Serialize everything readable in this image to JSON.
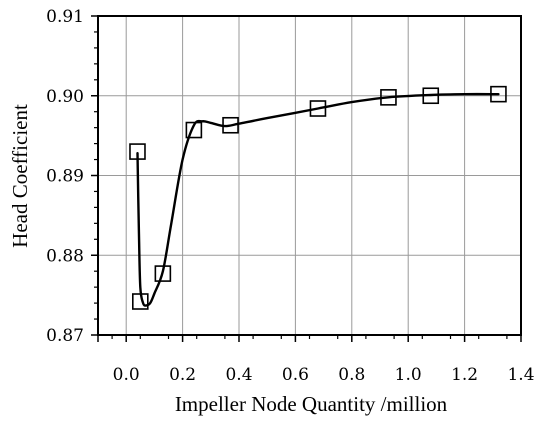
{
  "chart_data": {
    "type": "line",
    "xlabel": "Impeller Node Quantity /million",
    "ylabel": "Head Coefficient",
    "xlim": [
      -0.1,
      1.4
    ],
    "ylim": [
      0.87,
      0.91
    ],
    "x_ticks": [
      0.0,
      0.2,
      0.4,
      0.6,
      0.8,
      1.0,
      1.2,
      1.4
    ],
    "x_tick_labels": [
      "0.0",
      "0.2",
      "0.4",
      "0.6",
      "0.8",
      "1.0",
      "1.2",
      "1.4"
    ],
    "y_ticks": [
      0.87,
      0.88,
      0.89,
      0.9,
      0.91
    ],
    "y_tick_labels": [
      "0.87",
      "0.88",
      "0.89",
      "0.90",
      "0.91"
    ],
    "grid": true,
    "marker": "open-square",
    "series": [
      {
        "x": [
          0.04,
          0.05,
          0.13,
          0.24,
          0.37,
          0.68,
          0.93,
          1.08,
          1.32
        ],
        "y": [
          0.893,
          0.8742,
          0.8777,
          0.8957,
          0.8963,
          0.8984,
          0.8998,
          0.9,
          0.9002
        ]
      }
    ],
    "fitted_curve": {
      "x": [
        0.04,
        0.045,
        0.05,
        0.06,
        0.07,
        0.085,
        0.1,
        0.13,
        0.16,
        0.2,
        0.24,
        0.27,
        0.3,
        0.35,
        0.4,
        0.5,
        0.68,
        0.8,
        0.93,
        1.08,
        1.2,
        1.32
      ],
      "y": [
        0.8928,
        0.883,
        0.876,
        0.874,
        0.8737,
        0.874,
        0.8752,
        0.878,
        0.884,
        0.892,
        0.8963,
        0.8968,
        0.8966,
        0.8962,
        0.8965,
        0.8972,
        0.8984,
        0.8992,
        0.8998,
        0.9001,
        0.9002,
        0.9002
      ]
    }
  }
}
